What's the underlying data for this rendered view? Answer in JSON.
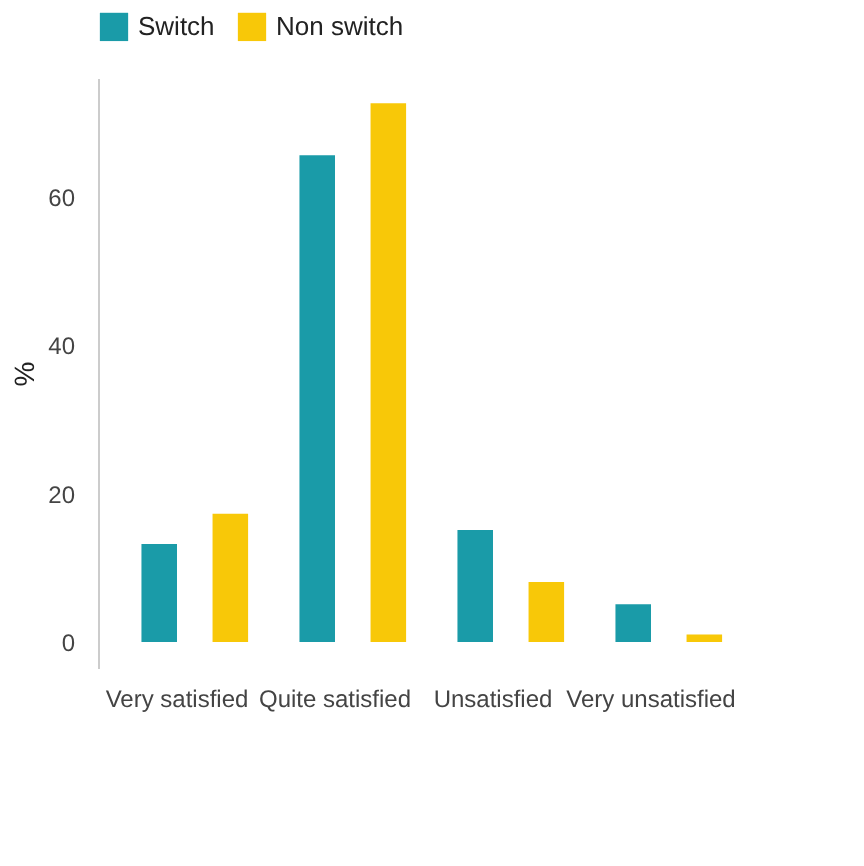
{
  "chart_data": {
    "type": "bar",
    "ylabel": "%",
    "categories": [
      "Very satisfied",
      "Quite satisfied",
      "Unsatisfied",
      "Very unsatisfied"
    ],
    "series": [
      {
        "name": "Switch",
        "color": "#1a9ba8",
        "values": [
          13.2,
          65.6,
          15.1,
          5.1
        ]
      },
      {
        "name": "Non switch",
        "color": "#f8c808",
        "values": [
          17.3,
          72.6,
          8.1,
          1.0
        ]
      }
    ],
    "ylim": [
      -3.5,
      76
    ],
    "yticks": [
      0,
      20,
      40,
      60
    ],
    "grid": false,
    "legend": "top"
  }
}
